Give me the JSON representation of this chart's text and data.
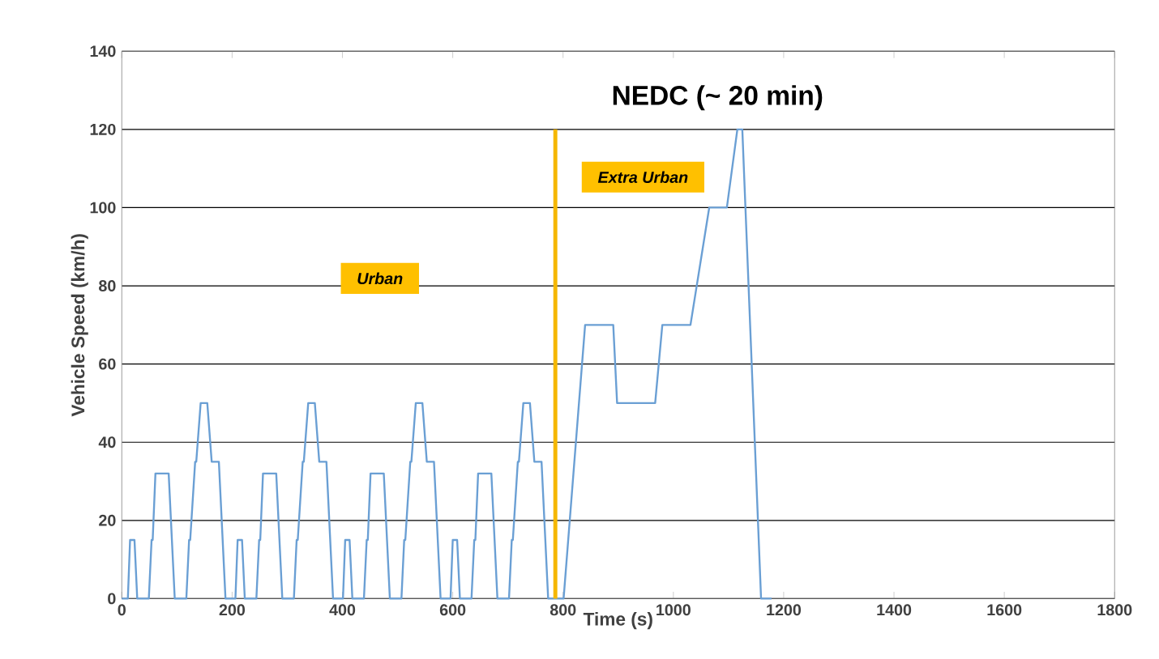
{
  "chart_data": {
    "type": "line",
    "title": "NEDC (~ 20 min)",
    "xlabel": "Time (s)",
    "ylabel": "Vehicle Speed (km/h)",
    "annotations": [
      "Urban",
      "Extra Urban"
    ],
    "xlim": [
      0,
      1800
    ],
    "xticks": [
      0,
      200,
      400,
      600,
      800,
      1000,
      1200,
      1400,
      1600,
      1800
    ],
    "ylim": [
      0,
      140
    ],
    "yticks": [
      0,
      20,
      40,
      60,
      80,
      100,
      120,
      140
    ],
    "grid": "y",
    "ref_lines": [
      {
        "axis": "x",
        "value": 786,
        "color": "#f5b700"
      }
    ],
    "series": [
      {
        "color": "#6a9fd4",
        "x": [
          0,
          11,
          15,
          23,
          28,
          49,
          54,
          56,
          61,
          85,
          96,
          117,
          122,
          124,
          133,
          135,
          143,
          155,
          163,
          176,
          188,
          195,
          206,
          210,
          218,
          223,
          244,
          249,
          251,
          256,
          280,
          291,
          312,
          317,
          319,
          328,
          330,
          338,
          350,
          358,
          371,
          383,
          390,
          401,
          405,
          413,
          418,
          439,
          444,
          446,
          451,
          475,
          486,
          507,
          512,
          514,
          523,
          525,
          533,
          545,
          553,
          566,
          578,
          585,
          596,
          600,
          608,
          613,
          634,
          639,
          641,
          646,
          670,
          681,
          702,
          707,
          709,
          718,
          720,
          728,
          740,
          748,
          761,
          773,
          801,
          840,
          891,
          898,
          967,
          980,
          1031,
          1065,
          1097,
          1116,
          1125,
          1159,
          1178
        ],
        "values": [
          0,
          0,
          15,
          15,
          0,
          0,
          15,
          15,
          32,
          32,
          0,
          0,
          15,
          15,
          35,
          35,
          50,
          50,
          35,
          35,
          0,
          0,
          0,
          15,
          15,
          0,
          0,
          15,
          15,
          32,
          32,
          0,
          0,
          15,
          15,
          35,
          35,
          50,
          50,
          35,
          35,
          0,
          0,
          0,
          15,
          15,
          0,
          0,
          15,
          15,
          32,
          32,
          0,
          0,
          15,
          15,
          35,
          35,
          50,
          50,
          35,
          35,
          0,
          0,
          0,
          15,
          15,
          0,
          0,
          15,
          15,
          32,
          32,
          0,
          0,
          15,
          15,
          35,
          35,
          50,
          50,
          35,
          35,
          0,
          0,
          70,
          70,
          50,
          50,
          70,
          70,
          100,
          100,
          120,
          120,
          0,
          0
        ]
      }
    ]
  }
}
